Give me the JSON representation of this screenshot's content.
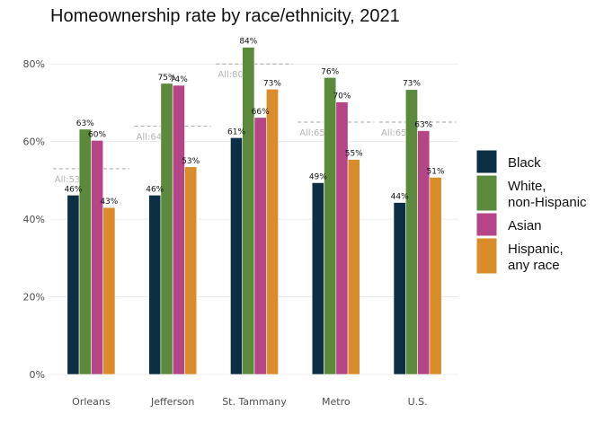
{
  "chart_data": {
    "type": "bar",
    "title": "Homeownership rate by race/ethnicity, 2021",
    "xlabel": "",
    "ylabel": "",
    "ylim": [
      0,
      0.9
    ],
    "y_ticks": [
      0,
      0.2,
      0.4,
      0.6,
      0.8
    ],
    "y_tick_labels": [
      "0%",
      "20%",
      "40%",
      "60%",
      "80%"
    ],
    "grid": true,
    "legend_position": "right",
    "categories": [
      "Orleans",
      "Jefferson",
      "St. Tammany",
      "Metro",
      "U.S."
    ],
    "series": [
      {
        "name": "Black",
        "color": "#0d2f45",
        "values": [
          0.462,
          0.462,
          0.61,
          0.494,
          0.443
        ],
        "labels": [
          "46%",
          "46%",
          "61%",
          "49%",
          "44%"
        ]
      },
      {
        "name": "White,\nnon-Hispanic",
        "color": "#5b8a3c",
        "values": [
          0.632,
          0.75,
          0.843,
          0.765,
          0.734
        ],
        "labels": [
          "63%",
          "75%",
          "84%",
          "76%",
          "73%"
        ]
      },
      {
        "name": "Asian",
        "color": "#b54586",
        "values": [
          0.603,
          0.745,
          0.662,
          0.702,
          0.628
        ],
        "labels": [
          "60%",
          "74%",
          "66%",
          "70%",
          "63%"
        ]
      },
      {
        "name": "Hispanic,\nany race",
        "color": "#d98c2a",
        "values": [
          0.43,
          0.535,
          0.735,
          0.554,
          0.508
        ],
        "labels": [
          "43%",
          "53%",
          "73%",
          "55%",
          "51%"
        ]
      }
    ],
    "all_average": {
      "values": [
        0.53,
        0.64,
        0.8,
        0.65,
        0.65
      ],
      "labels": [
        "All:53%",
        "All:64%",
        "All:80%",
        "All:65%",
        "All:65%"
      ],
      "color": "#a6a6a6"
    }
  }
}
